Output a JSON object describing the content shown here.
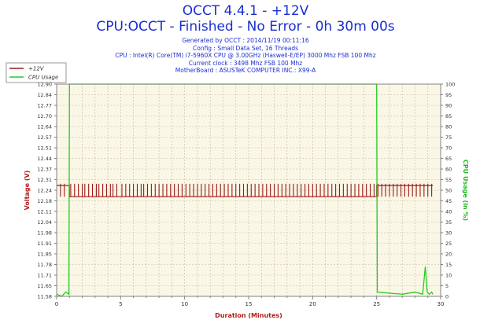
{
  "header": {
    "title": "OCCT 4.4.1 - +12V",
    "subtitle": "CPU:OCCT - Finished - No Error - 0h 30m 00s",
    "info_lines": [
      "Generated by OCCT : 2014/11/19 00:11:16",
      "Config : Small Data Set, 16 Threads",
      "CPU : Intel(R) Core(TM) i7-5960X CPU @ 3.00GHz (Haswell-E/EP) 3000 Mhz FSB 100 Mhz",
      "Current clock : 3498 Mhz FSB 100 Mhz",
      "MotherBoard : ASUSTeK COMPUTER INC.: X99-A"
    ]
  },
  "colors": {
    "voltage": "#9b1a1a",
    "cpu": "#22cc22",
    "plot_bg": "#fbf7e6",
    "grid": "#bdb9a4",
    "left_axis_label": "#b01818",
    "right_axis_label": "#22bb22",
    "x_axis_label": "#b01818"
  },
  "chart_data": {
    "type": "line",
    "xlabel": "Duration (Minutes)",
    "ylabel_left": "Voltage (V)",
    "ylabel_right": "CPU Usage (in %)",
    "xlim": [
      0,
      30
    ],
    "ylim_left": [
      11.58,
      12.9
    ],
    "ylim_right": [
      0,
      100
    ],
    "x_ticks": [
      "0",
      "5",
      "10",
      "15",
      "20",
      "25",
      "30"
    ],
    "y_ticks_left": [
      "11.58",
      "11.65",
      "11.71",
      "11.78",
      "11.85",
      "11.91",
      "11.98",
      "12.04",
      "12.11",
      "12.18",
      "12.24",
      "12.31",
      "12.37",
      "12.44",
      "12.51",
      "12.57",
      "12.64",
      "12.70",
      "12.77",
      "12.84",
      "12.90"
    ],
    "y_ticks_right": [
      "0",
      "5",
      "10",
      "15",
      "20",
      "25",
      "30",
      "35",
      "40",
      "45",
      "50",
      "55",
      "60",
      "65",
      "70",
      "75",
      "80",
      "85",
      "90",
      "95",
      "100"
    ],
    "grid": true,
    "legend_position": "top-left",
    "series": [
      {
        "name": "+12V",
        "axis": "left",
        "base": 12.2,
        "spike_high": 12.28,
        "spike_times": [
          0.3,
          0.6,
          1.1,
          1.4,
          1.7,
          2.0,
          2.2,
          2.5,
          2.8,
          3.1,
          3.3,
          3.6,
          3.9,
          4.2,
          4.4,
          4.7,
          5.1,
          5.4,
          5.7,
          6.0,
          6.3,
          6.6,
          6.8,
          7.1,
          7.4,
          7.7,
          8.0,
          8.3,
          8.6,
          8.9,
          9.2,
          9.5,
          9.8,
          10.1,
          10.4,
          10.7,
          11.0,
          11.3,
          11.6,
          11.9,
          12.2,
          12.5,
          12.8,
          13.1,
          13.4,
          13.7,
          14.0,
          14.3,
          14.6,
          14.9,
          15.2,
          15.5,
          15.8,
          16.1,
          16.4,
          16.7,
          17.0,
          17.3,
          17.6,
          17.9,
          18.2,
          18.5,
          18.8,
          19.1,
          19.4,
          19.7,
          20.0,
          20.3,
          20.6,
          20.9,
          21.2,
          21.5,
          21.8,
          22.1,
          22.4,
          22.7,
          23.0,
          23.3,
          23.6,
          23.9,
          24.2,
          24.5,
          24.8,
          25.1,
          25.4,
          25.7,
          26.0,
          26.3,
          26.6,
          26.9,
          27.2,
          27.5,
          27.8,
          28.1,
          28.4,
          28.7,
          29.0,
          29.3
        ],
        "step_x": [
          0,
          1.0,
          1.0,
          25.0,
          25.0,
          29.4
        ],
        "step_y": [
          12.27,
          12.27,
          12.2,
          12.2,
          12.27,
          12.27
        ]
      },
      {
        "name": "CPU Usage",
        "axis": "right",
        "x": [
          0,
          0.4,
          0.7,
          0.95,
          1.0,
          1.05,
          24.95,
          25.0,
          25.05,
          27.0,
          28.0,
          28.6,
          28.8,
          28.95,
          29.1,
          29.3,
          29.4
        ],
        "y": [
          1,
          0,
          2,
          1,
          100,
          100,
          100,
          100,
          2,
          1,
          2,
          1,
          14,
          2,
          1,
          2,
          1
        ]
      }
    ]
  }
}
